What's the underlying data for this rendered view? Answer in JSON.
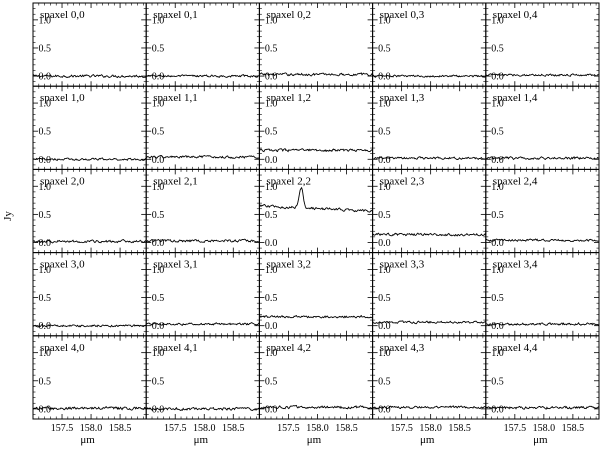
{
  "chart_data": {
    "type": "line",
    "layout": "5x5 grid of spectra",
    "ylabel": "Jy",
    "xlabel": "μm",
    "xlim": [
      157.0,
      158.95
    ],
    "ylim": [
      -0.18,
      1.3
    ],
    "xticks": [
      157.5,
      158.0,
      158.5
    ],
    "xtick_labels": [
      "157.5",
      "158.0",
      "158.5"
    ],
    "yticks": [
      0.0,
      0.5,
      1.0
    ],
    "ytick_labels": [
      "0.0",
      "0.5",
      "1.0"
    ],
    "line_color": "#000000",
    "grid": false,
    "panels": [
      {
        "label": "spaxel 0,0",
        "row": 0,
        "col": 0,
        "baseline": 0.0,
        "noise": 0.035
      },
      {
        "label": "spaxel 0,1",
        "row": 0,
        "col": 1,
        "baseline": 0.0,
        "noise": 0.03
      },
      {
        "label": "spaxel 0,2",
        "row": 0,
        "col": 2,
        "baseline": 0.03,
        "noise": 0.035
      },
      {
        "label": "spaxel 0,3",
        "row": 0,
        "col": 3,
        "baseline": 0.0,
        "noise": 0.03
      },
      {
        "label": "spaxel 0,4",
        "row": 0,
        "col": 4,
        "baseline": 0.02,
        "noise": 0.03
      },
      {
        "label": "spaxel 1,0",
        "row": 1,
        "col": 0,
        "baseline": 0.0,
        "noise": 0.03
      },
      {
        "label": "spaxel 1,1",
        "row": 1,
        "col": 1,
        "baseline": 0.04,
        "noise": 0.035
      },
      {
        "label": "spaxel 1,2",
        "row": 1,
        "col": 2,
        "baseline": 0.16,
        "noise": 0.035
      },
      {
        "label": "spaxel 1,3",
        "row": 1,
        "col": 3,
        "baseline": 0.02,
        "noise": 0.03
      },
      {
        "label": "spaxel 1,4",
        "row": 1,
        "col": 4,
        "baseline": 0.02,
        "noise": 0.035
      },
      {
        "label": "spaxel 2,0",
        "row": 2,
        "col": 0,
        "baseline": 0.02,
        "noise": 0.035
      },
      {
        "label": "spaxel 2,1",
        "row": 2,
        "col": 1,
        "baseline": 0.03,
        "noise": 0.035
      },
      {
        "label": "spaxel 2,2",
        "row": 2,
        "col": 2,
        "baseline": 0.65,
        "slope_end": 0.56,
        "noise": 0.035,
        "peak_center": 157.72,
        "peak_height": 0.36,
        "peak_width": 0.035
      },
      {
        "label": "spaxel 2,3",
        "row": 2,
        "col": 3,
        "baseline": 0.14,
        "noise": 0.035
      },
      {
        "label": "spaxel 2,4",
        "row": 2,
        "col": 4,
        "baseline": 0.04,
        "noise": 0.03
      },
      {
        "label": "spaxel 3,0",
        "row": 3,
        "col": 0,
        "baseline": 0.0,
        "noise": 0.03
      },
      {
        "label": "spaxel 3,1",
        "row": 3,
        "col": 1,
        "baseline": 0.03,
        "noise": 0.03
      },
      {
        "label": "spaxel 3,2",
        "row": 3,
        "col": 2,
        "baseline": 0.16,
        "noise": 0.03
      },
      {
        "label": "spaxel 3,3",
        "row": 3,
        "col": 3,
        "baseline": 0.06,
        "noise": 0.03
      },
      {
        "label": "spaxel 3,4",
        "row": 3,
        "col": 4,
        "baseline": 0.03,
        "noise": 0.035
      },
      {
        "label": "spaxel 4,0",
        "row": 4,
        "col": 0,
        "baseline": 0.01,
        "noise": 0.04
      },
      {
        "label": "spaxel 4,1",
        "row": 4,
        "col": 1,
        "baseline": 0.0,
        "noise": 0.035
      },
      {
        "label": "spaxel 4,2",
        "row": 4,
        "col": 2,
        "baseline": 0.03,
        "noise": 0.035
      },
      {
        "label": "spaxel 4,3",
        "row": 4,
        "col": 3,
        "baseline": 0.03,
        "noise": 0.03
      },
      {
        "label": "spaxel 4,4",
        "row": 4,
        "col": 4,
        "baseline": 0.02,
        "noise": 0.035
      }
    ]
  }
}
